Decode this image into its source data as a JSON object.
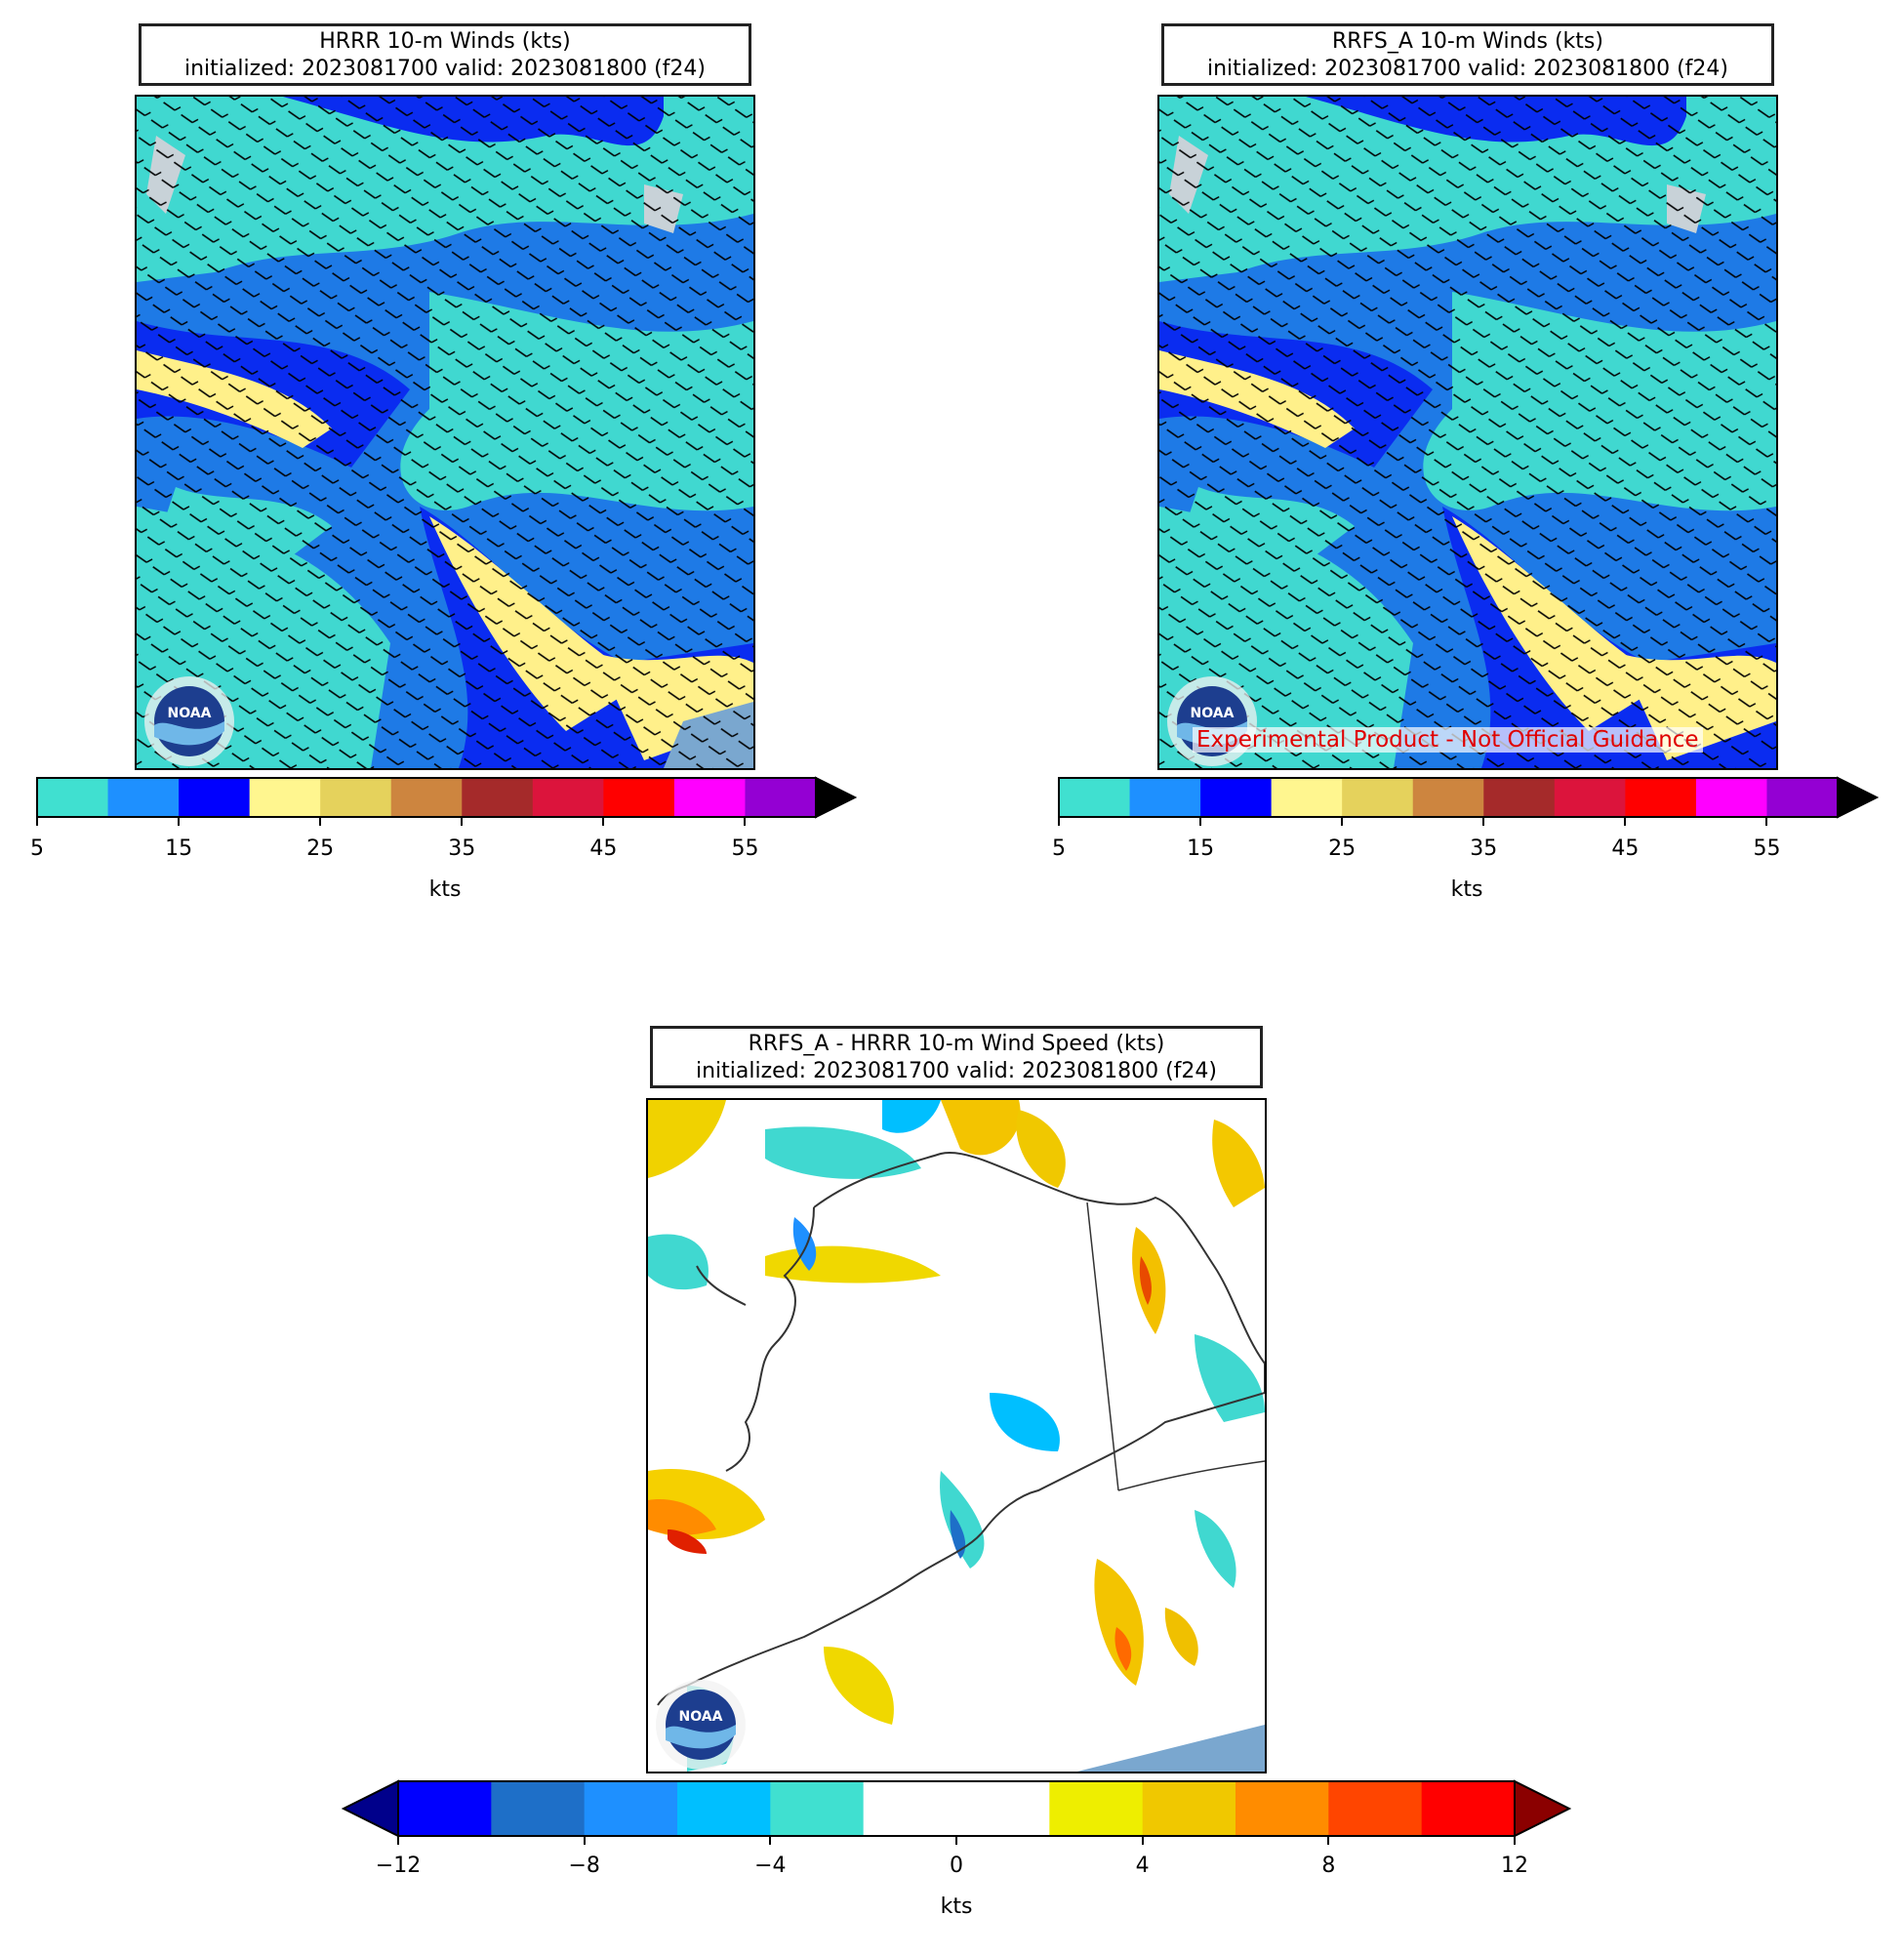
{
  "panels": [
    {
      "id": "hrrr",
      "title_line1": "HRRR 10-m Winds (kts)",
      "title_line2": "initialized: 2023081700 valid: 2023081800 (f24)",
      "colorbar": {
        "unit": "kts",
        "ticks": [
          "5",
          "15",
          "25",
          "35",
          "45",
          "55"
        ],
        "colors": [
          "#40e0d0",
          "#1e90ff",
          "#0000ff",
          "#fff68f",
          "#e5d25c",
          "#cd853f",
          "#a52a2a",
          "#dc143c",
          "#ff0000",
          "#ff00ff",
          "#9400d3"
        ],
        "extend_color": "#000000"
      }
    },
    {
      "id": "rrfs",
      "title_line1": "RRFS_A 10-m Winds (kts)",
      "title_line2": "initialized: 2023081700 valid: 2023081800 (f24)",
      "watermark": "Experimental Product - Not Official Guidance",
      "colorbar": {
        "unit": "kts",
        "ticks": [
          "5",
          "15",
          "25",
          "35",
          "45",
          "55"
        ],
        "colors": [
          "#40e0d0",
          "#1e90ff",
          "#0000ff",
          "#fff68f",
          "#e5d25c",
          "#cd853f",
          "#a52a2a",
          "#dc143c",
          "#ff0000",
          "#ff00ff",
          "#9400d3"
        ],
        "extend_color": "#000000"
      }
    },
    {
      "id": "diff",
      "title_line1": "RRFS_A - HRRR 10-m Wind Speed (kts)",
      "title_line2": "initialized: 2023081700 valid: 2023081800 (f24)",
      "colorbar": {
        "unit": "kts",
        "ticks": [
          "−12",
          "−8",
          "−4",
          "0",
          "4",
          "8",
          "12"
        ],
        "colors": [
          "#0000ff",
          "#1e6fc8",
          "#1e90ff",
          "#00bfff",
          "#40e0d0",
          "#ffffff",
          "#ffffff",
          "#eeee00",
          "#f0c800",
          "#ff8c00",
          "#ff4500",
          "#ff0000"
        ],
        "extend_low_color": "#00008b",
        "extend_high_color": "#8b0000"
      }
    }
  ],
  "logo_icon": "noaa-logo-icon"
}
